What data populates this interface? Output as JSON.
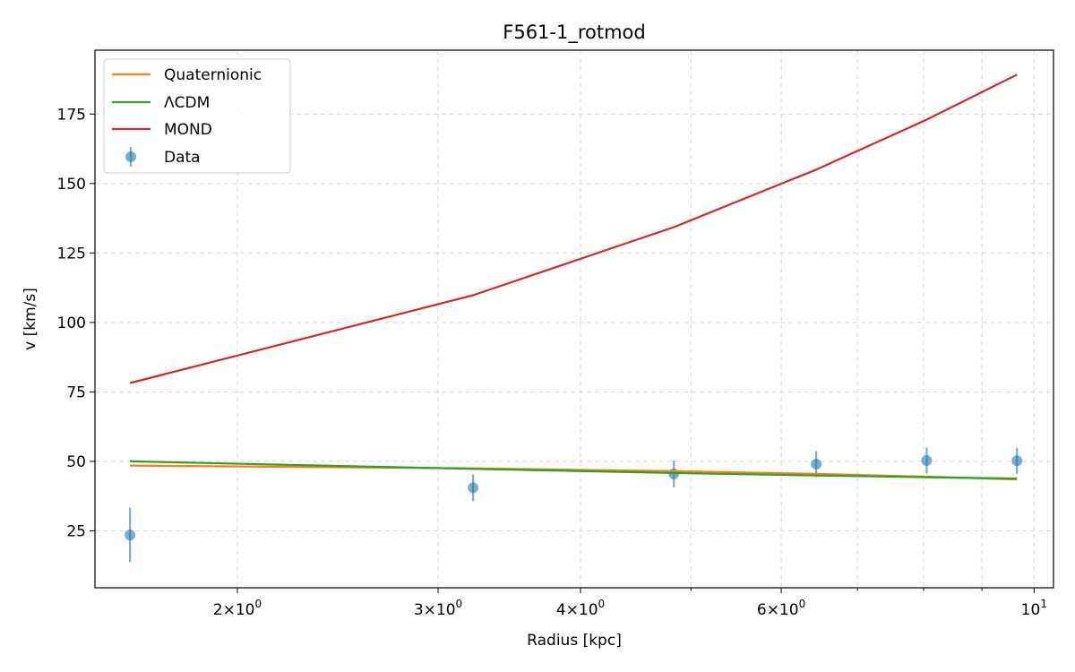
{
  "chart_data": {
    "type": "line",
    "title": "F561-1_rotmod",
    "xlabel": "Radius [kpc]",
    "ylabel": "v [km/s]",
    "xscale": "log",
    "xlim": [
      1.5,
      10.4
    ],
    "ylim": [
      4.5,
      198
    ],
    "x_ticks": [
      {
        "value": 2,
        "base": "2",
        "mult": "×",
        "pow": "10",
        "exp": "0"
      },
      {
        "value": 3,
        "base": "3",
        "mult": "×",
        "pow": "10",
        "exp": "0"
      },
      {
        "value": 4,
        "base": "4",
        "mult": "×",
        "pow": "10",
        "exp": "0"
      },
      {
        "value": 6,
        "base": "6",
        "mult": "×",
        "pow": "10",
        "exp": "0"
      },
      {
        "value": 10,
        "base": "",
        "mult": "",
        "pow": "10",
        "exp": "1"
      }
    ],
    "x_minor_ticks": [
      5,
      7,
      8,
      9
    ],
    "y_ticks": [
      25,
      50,
      75,
      100,
      125,
      150,
      175
    ],
    "grid": true,
    "legend_position": "top-left",
    "x": [
      1.61,
      3.22,
      4.83,
      6.44,
      8.05,
      9.66
    ],
    "series": [
      {
        "name": "Quaternionic",
        "color": "#ff7f0e",
        "values": [
          48.5,
          47.5,
          46.5,
          45.5,
          44.5,
          43.5
        ]
      },
      {
        "name": "ΛCDM",
        "color": "#2ca02c",
        "values": [
          50.0,
          47.3,
          45.8,
          44.9,
          44.3,
          43.8
        ]
      },
      {
        "name": "MOND",
        "color": "#d62728",
        "values": [
          78.2,
          109.8,
          134.3,
          155.0,
          173.0,
          189.2
        ]
      }
    ],
    "scatter": {
      "name": "Data",
      "color": "#1f77b4",
      "y": [
        23.5,
        40.5,
        45.5,
        49.0,
        50.3,
        50.2
      ],
      "yerr": [
        9.8,
        4.8,
        4.8,
        4.7,
        4.7,
        4.7
      ]
    }
  }
}
